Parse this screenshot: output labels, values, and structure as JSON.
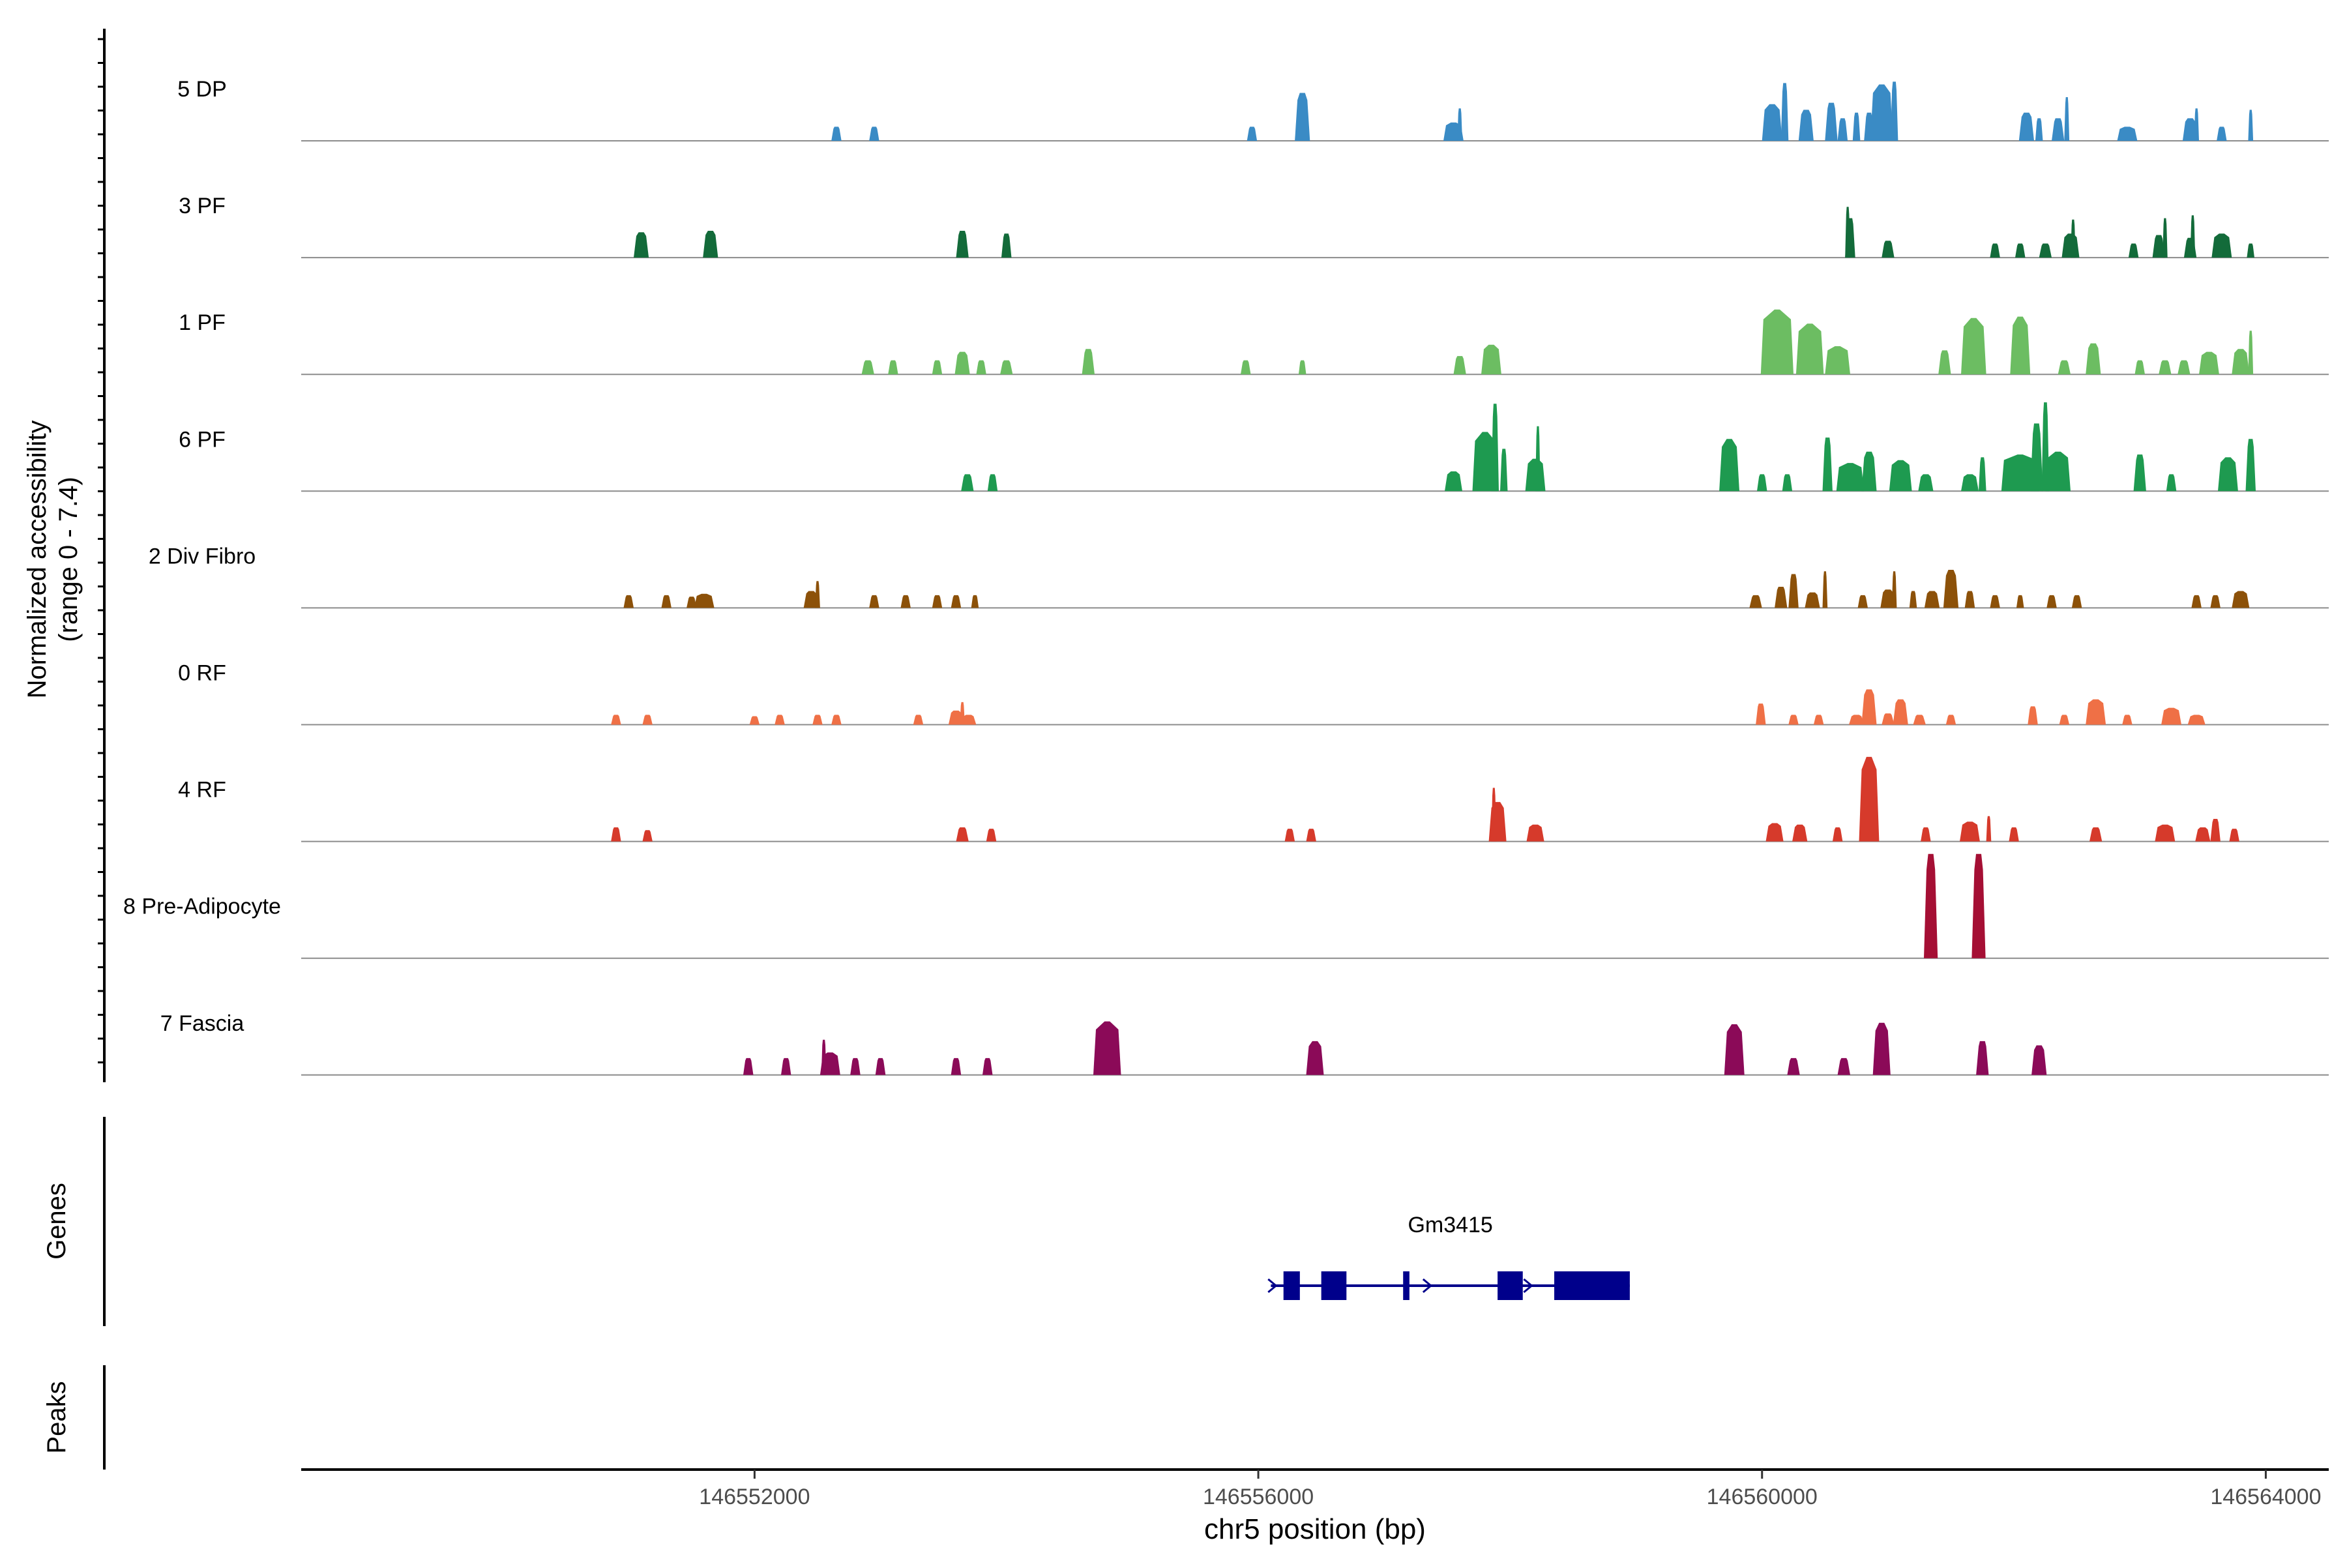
{
  "chart_data": {
    "type": "area",
    "title": "",
    "ylabel_line1": "Normalized accessibility",
    "ylabel_line2": "(range 0 - 7.4)",
    "ylim": [
      0,
      7.4
    ],
    "xlabel": "chr5 position (bp)",
    "xlim": [
      146548400,
      146564500
    ],
    "xticks": [
      146552000,
      146556000,
      146560000,
      146564000
    ],
    "xtick_labels": [
      "146552000",
      "146556000",
      "146560000",
      "146564000"
    ],
    "track_panels": {
      "genes": "Genes",
      "peaks": "Peaks"
    },
    "series": [
      {
        "name": "5 DP",
        "color": "#3a8bc5",
        "peaks": [
          [
            146552650,
            80,
            1.0
          ],
          [
            146552950,
            80,
            1.0
          ],
          [
            146555950,
            80,
            1.0
          ],
          [
            146556350,
            120,
            3.4
          ],
          [
            146557550,
            160,
            1.3
          ],
          [
            146557600,
            40,
            2.3
          ],
          [
            146560080,
            160,
            2.6
          ],
          [
            146560180,
            60,
            4.1
          ],
          [
            146560350,
            120,
            2.2
          ],
          [
            146560550,
            100,
            2.7
          ],
          [
            146560640,
            80,
            1.6
          ],
          [
            146560750,
            60,
            2.0
          ],
          [
            146560850,
            80,
            2.0
          ],
          [
            146560950,
            180,
            4.0
          ],
          [
            146561050,
            60,
            4.2
          ],
          [
            146562100,
            120,
            2.0
          ],
          [
            146562200,
            60,
            1.6
          ],
          [
            146562350,
            100,
            1.6
          ],
          [
            146562420,
            40,
            3.1
          ],
          [
            146562900,
            160,
            1.0
          ],
          [
            146563400,
            120,
            1.6
          ],
          [
            146563450,
            40,
            2.3
          ],
          [
            146563650,
            80,
            1.0
          ],
          [
            146563880,
            40,
            2.2
          ]
        ]
      },
      {
        "name": "3 PF",
        "color": "#136b3a",
        "peaks": [
          [
            146551100,
            120,
            1.8
          ],
          [
            146551650,
            120,
            1.9
          ],
          [
            146553650,
            100,
            1.9
          ],
          [
            146554000,
            80,
            1.7
          ],
          [
            146560700,
            80,
            2.8
          ],
          [
            146560680,
            40,
            3.6
          ],
          [
            146561000,
            100,
            1.2
          ],
          [
            146561850,
            80,
            1.0
          ],
          [
            146562050,
            80,
            1.0
          ],
          [
            146562250,
            100,
            1.0
          ],
          [
            146562450,
            140,
            1.7
          ],
          [
            146562470,
            40,
            2.7
          ],
          [
            146562950,
            80,
            1.0
          ],
          [
            146563150,
            100,
            1.6
          ],
          [
            146563200,
            40,
            2.8
          ],
          [
            146563400,
            100,
            1.4
          ],
          [
            146563420,
            40,
            3.0
          ],
          [
            146563650,
            160,
            1.7
          ],
          [
            146563880,
            60,
            1.0
          ]
        ]
      },
      {
        "name": "1 PF",
        "color": "#6cbd62",
        "peaks": [
          [
            146552900,
            100,
            1.0
          ],
          [
            146553100,
            80,
            1.0
          ],
          [
            146553450,
            80,
            1.0
          ],
          [
            146553650,
            120,
            1.6
          ],
          [
            146553800,
            80,
            1.0
          ],
          [
            146554000,
            100,
            1.0
          ],
          [
            146554650,
            100,
            1.8
          ],
          [
            146555900,
            80,
            1.0
          ],
          [
            146556350,
            60,
            1.0
          ],
          [
            146557600,
            100,
            1.3
          ],
          [
            146557850,
            160,
            2.1
          ],
          [
            146560120,
            260,
            4.6
          ],
          [
            146560380,
            220,
            3.6
          ],
          [
            146560600,
            200,
            2.0
          ],
          [
            146561450,
            100,
            1.7
          ],
          [
            146561680,
            200,
            4.0
          ],
          [
            146562050,
            160,
            4.1
          ],
          [
            146562400,
            100,
            1.0
          ],
          [
            146562630,
            120,
            2.2
          ],
          [
            146563000,
            80,
            1.0
          ],
          [
            146563200,
            100,
            1.0
          ],
          [
            146563350,
            100,
            1.0
          ],
          [
            146563550,
            160,
            1.6
          ],
          [
            146563800,
            140,
            1.8
          ],
          [
            146563880,
            40,
            3.1
          ]
        ]
      },
      {
        "name": "6 PF",
        "color": "#1e9a50",
        "peaks": [
          [
            146553690,
            100,
            1.2
          ],
          [
            146553890,
            80,
            1.2
          ],
          [
            146557550,
            140,
            1.4
          ],
          [
            146557800,
            200,
            4.2
          ],
          [
            146557880,
            60,
            6.2
          ],
          [
            146557950,
            60,
            3.0
          ],
          [
            146558200,
            160,
            2.3
          ],
          [
            146558220,
            40,
            4.6
          ],
          [
            146559740,
            160,
            3.7
          ],
          [
            146560000,
            80,
            1.2
          ],
          [
            146560200,
            80,
            1.2
          ],
          [
            146560520,
            80,
            3.8
          ],
          [
            146560700,
            220,
            2.0
          ],
          [
            146560850,
            120,
            2.8
          ],
          [
            146561100,
            180,
            2.2
          ],
          [
            146561300,
            120,
            1.2
          ],
          [
            146561650,
            140,
            1.2
          ],
          [
            146561750,
            60,
            2.4
          ],
          [
            146562050,
            300,
            2.6
          ],
          [
            146562180,
            100,
            4.8
          ],
          [
            146562250,
            60,
            6.3
          ],
          [
            146562350,
            200,
            2.8
          ],
          [
            146563000,
            100,
            2.6
          ],
          [
            146563250,
            80,
            1.2
          ],
          [
            146563700,
            160,
            2.4
          ],
          [
            146563880,
            80,
            3.7
          ]
        ]
      },
      {
        "name": "2 Div Fibro",
        "color": "#8c5109",
        "peaks": [
          [
            146551000,
            80,
            0.9
          ],
          [
            146551300,
            80,
            0.9
          ],
          [
            146551500,
            80,
            0.8
          ],
          [
            146551600,
            160,
            1.0
          ],
          [
            146552450,
            120,
            1.2
          ],
          [
            146552500,
            40,
            1.9
          ],
          [
            146552950,
            80,
            0.9
          ],
          [
            146553200,
            80,
            0.9
          ],
          [
            146553450,
            80,
            0.9
          ],
          [
            146553600,
            80,
            0.9
          ],
          [
            146553750,
            60,
            0.9
          ],
          [
            146559950,
            100,
            0.9
          ],
          [
            146560150,
            100,
            1.5
          ],
          [
            146560250,
            80,
            2.4
          ],
          [
            146560400,
            120,
            1.1
          ],
          [
            146560500,
            40,
            2.6
          ],
          [
            146560800,
            80,
            0.9
          ],
          [
            146561000,
            120,
            1.3
          ],
          [
            146561050,
            40,
            2.6
          ],
          [
            146561200,
            60,
            1.2
          ],
          [
            146561350,
            120,
            1.2
          ],
          [
            146561500,
            120,
            2.7
          ],
          [
            146561650,
            80,
            1.2
          ],
          [
            146561850,
            80,
            0.9
          ],
          [
            146562050,
            60,
            0.9
          ],
          [
            146562300,
            80,
            0.9
          ],
          [
            146562500,
            80,
            0.9
          ],
          [
            146563450,
            80,
            0.9
          ],
          [
            146563600,
            80,
            0.9
          ],
          [
            146563800,
            140,
            1.2
          ]
        ]
      },
      {
        "name": "0 RF",
        "color": "#ef7046",
        "peaks": [
          [
            146550900,
            80,
            0.7
          ],
          [
            146551150,
            80,
            0.7
          ],
          [
            146552000,
            80,
            0.6
          ],
          [
            146552200,
            80,
            0.7
          ],
          [
            146552500,
            80,
            0.7
          ],
          [
            146552650,
            80,
            0.7
          ],
          [
            146553300,
            80,
            0.7
          ],
          [
            146553600,
            120,
            1.0
          ],
          [
            146553650,
            40,
            1.6
          ],
          [
            146553700,
            120,
            0.7
          ],
          [
            146559990,
            80,
            1.5
          ],
          [
            146560250,
            80,
            0.7
          ],
          [
            146560450,
            80,
            0.7
          ],
          [
            146560750,
            120,
            0.7
          ],
          [
            146560850,
            120,
            2.5
          ],
          [
            146561000,
            100,
            0.8
          ],
          [
            146561100,
            120,
            1.8
          ],
          [
            146561250,
            100,
            0.7
          ],
          [
            146561500,
            80,
            0.7
          ],
          [
            146562150,
            80,
            1.3
          ],
          [
            146562400,
            80,
            0.7
          ],
          [
            146562650,
            160,
            1.8
          ],
          [
            146562900,
            80,
            0.7
          ],
          [
            146563250,
            160,
            1.2
          ],
          [
            146563450,
            140,
            0.7
          ]
        ]
      },
      {
        "name": "4 RF",
        "color": "#d63a2b",
        "peaks": [
          [
            146550900,
            80,
            1.0
          ],
          [
            146551150,
            80,
            0.8
          ],
          [
            146553650,
            100,
            1.0
          ],
          [
            146553880,
            80,
            0.9
          ],
          [
            146556250,
            80,
            0.9
          ],
          [
            146556420,
            80,
            0.9
          ],
          [
            146557900,
            140,
            2.8
          ],
          [
            146557870,
            40,
            3.8
          ],
          [
            146558200,
            140,
            1.2
          ],
          [
            146560100,
            140,
            1.3
          ],
          [
            146560300,
            120,
            1.2
          ],
          [
            146560600,
            80,
            1.0
          ],
          [
            146560850,
            160,
            6.0
          ],
          [
            146561300,
            80,
            1.0
          ],
          [
            146561650,
            160,
            1.4
          ],
          [
            146561800,
            40,
            1.8
          ],
          [
            146562000,
            80,
            1.0
          ],
          [
            146562650,
            100,
            1.0
          ],
          [
            146563200,
            160,
            1.2
          ],
          [
            146563500,
            120,
            1.0
          ],
          [
            146563600,
            80,
            1.6
          ],
          [
            146563750,
            80,
            0.9
          ]
        ]
      },
      {
        "name": "8 Pre-Adipocyte",
        "color": "#a50f34",
        "peaks": [
          [
            146561340,
            110,
            7.4
          ],
          [
            146561720,
            110,
            7.4
          ]
        ]
      },
      {
        "name": "7 Fascia",
        "color": "#8b0a58",
        "peaks": [
          [
            146551950,
            80,
            1.2
          ],
          [
            146552250,
            80,
            1.2
          ],
          [
            146552600,
            160,
            1.6
          ],
          [
            146552800,
            80,
            1.2
          ],
          [
            146552550,
            40,
            2.5
          ],
          [
            146553000,
            80,
            1.2
          ],
          [
            146553600,
            80,
            1.2
          ],
          [
            146553850,
            80,
            1.2
          ],
          [
            146554800,
            220,
            3.8
          ],
          [
            146556450,
            140,
            2.4
          ],
          [
            146559780,
            160,
            3.6
          ],
          [
            146560250,
            100,
            1.2
          ],
          [
            146560650,
            100,
            1.2
          ],
          [
            146560950,
            140,
            3.7
          ],
          [
            146561750,
            100,
            2.4
          ],
          [
            146562200,
            120,
            2.1
          ]
        ]
      }
    ],
    "genes": [
      {
        "name": "Gm3415",
        "color": "#00008b",
        "start": 146556100,
        "end": 146558950,
        "exons": [
          [
            146556200,
            146556330
          ],
          [
            146556500,
            146556700
          ],
          [
            146557150,
            146557200
          ],
          [
            146557900,
            146558100
          ],
          [
            146558350,
            146558950
          ]
        ]
      }
    ],
    "peak_regions": []
  }
}
